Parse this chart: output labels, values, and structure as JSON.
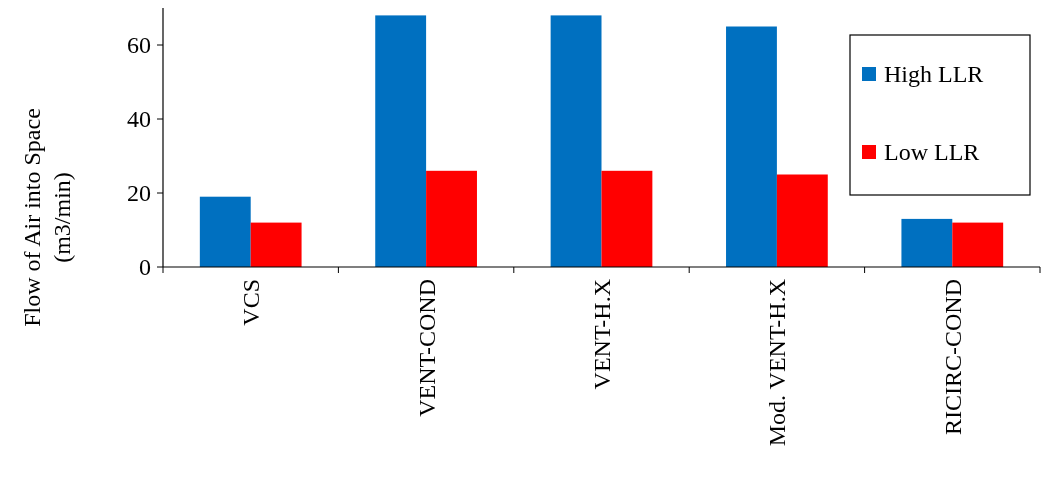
{
  "chart_data": {
    "type": "bar",
    "categories": [
      "VCS",
      "VENT-COND",
      "VENT-H.X",
      "Mod. VENT-H.X",
      "RICIRC-COND"
    ],
    "ylabel": "Flow of Air into Space\n(m3/min)",
    "ylim": [
      0,
      70
    ],
    "yticks": [
      0,
      20,
      40,
      60
    ],
    "grid": false,
    "legend": "top right",
    "series": [
      {
        "name": "High LLR",
        "color": "#0070c0",
        "values": [
          19,
          68,
          68,
          65,
          13
        ]
      },
      {
        "name": "Low LLR",
        "color": "#ff0000",
        "values": [
          12,
          26,
          26,
          25,
          12
        ]
      }
    ]
  }
}
